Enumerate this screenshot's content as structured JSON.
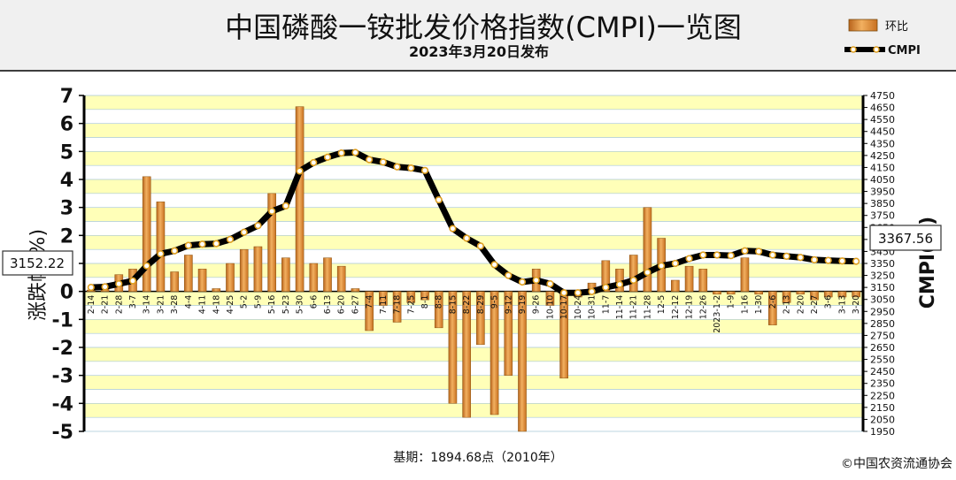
{
  "chart_data": {
    "type": "bar+line",
    "title": "中国磷酸一铵批发价格指数(CMPI)一览图",
    "subtitle": "2023年3月20日发布",
    "ylabel_left": "涨跌幅(%)",
    "ylabel_right": "CMPI(点)",
    "ylim_left": [
      -5,
      7
    ],
    "ylim_right": [
      1950,
      4750
    ],
    "left_ticks": [
      "7",
      "6",
      "5",
      "4",
      "3",
      "2",
      "1",
      "0",
      "-1",
      "-2",
      "-3",
      "-4",
      "-5"
    ],
    "right_ticks": [
      "4750",
      "4650",
      "4550",
      "4450",
      "4350",
      "4250",
      "4150",
      "4050",
      "3950",
      "3850",
      "3750",
      "3650",
      "3550",
      "3450",
      "3350",
      "3250",
      "3150",
      "3050",
      "2950",
      "2850",
      "2750",
      "2650",
      "2550",
      "2450",
      "2350",
      "2250",
      "2150",
      "2050",
      "1950"
    ],
    "x_tick_labels": [
      "2-14",
      "2-21",
      "2-28",
      "3-7",
      "3-14",
      "3-21",
      "3-28",
      "4-4",
      "4-11",
      "4-18",
      "4-25",
      "5-2",
      "5-9",
      "5-16",
      "5-23",
      "5-30",
      "6-6",
      "6-13",
      "6-20",
      "6-27",
      "7-4",
      "7-11",
      "7-18",
      "7-25",
      "8-1",
      "8-8",
      "8-15",
      "8-22",
      "8-29",
      "9-5",
      "9-12",
      "9-19",
      "9-26",
      "10-10",
      "10-17",
      "10-24",
      "10-31",
      "11-7",
      "11-14",
      "11-21",
      "11-28",
      "12-5",
      "12-12",
      "12-19",
      "12-26",
      "2023-1-2",
      "1-9",
      "1-16",
      "1-30",
      "2-6",
      "2-13",
      "2-20",
      "2-27",
      "3-6",
      "3-13",
      "3-20"
    ],
    "grid": true,
    "legend_position": "top-right",
    "series": [
      {
        "name": "环比",
        "kind": "bar",
        "axis": "left",
        "color": "#d4862a",
        "values": [
          0.05,
          0.1,
          0.6,
          0.8,
          4.1,
          3.2,
          0.7,
          1.3,
          0.8,
          0.1,
          1.0,
          1.5,
          1.6,
          3.5,
          1.2,
          6.6,
          1.0,
          1.2,
          0.9,
          0.1,
          -1.4,
          -0.5,
          -1.1,
          -0.4,
          -0.3,
          -1.3,
          -4.0,
          -4.5,
          -1.9,
          -4.4,
          -3.0,
          -5.0,
          0.8,
          -0.5,
          -3.1,
          -0.2,
          0.3,
          1.1,
          0.8,
          1.3,
          3.0,
          1.9,
          0.4,
          0.9,
          0.8,
          -0.1,
          -0.1,
          1.2,
          -0.1,
          -1.2,
          -0.4,
          -0.1,
          -0.3,
          -0.2,
          -0.2,
          -0.2
        ]
      },
      {
        "name": "CMPI",
        "kind": "line",
        "axis": "right",
        "color": "#000000",
        "values": [
          3150,
          3155,
          3180,
          3205,
          3330,
          3430,
          3455,
          3500,
          3510,
          3515,
          3550,
          3610,
          3665,
          3785,
          3830,
          4120,
          4190,
          4235,
          4270,
          4275,
          4215,
          4195,
          4155,
          4145,
          4125,
          3880,
          3640,
          3560,
          3495,
          3340,
          3250,
          3195,
          3210,
          3180,
          3105,
          3105,
          3115,
          3150,
          3175,
          3210,
          3275,
          3330,
          3350,
          3390,
          3420,
          3420,
          3415,
          3455,
          3450,
          3420,
          3410,
          3400,
          3380,
          3375,
          3370,
          3367.56
        ]
      }
    ],
    "left_callout": "3152.22",
    "right_callout": "3367.56",
    "footer_base": "基期：1894.68点（2010年）",
    "copyright": "©中国农资流通协会",
    "colors": {
      "bar_fill": "#d4862a",
      "bar_light": "#f0b868",
      "plot_band": "#ffffb8",
      "grid": "#a8c8d8",
      "line": "#000000",
      "marker_fill": "#ffffff",
      "marker_stroke": "#e0a020"
    }
  }
}
